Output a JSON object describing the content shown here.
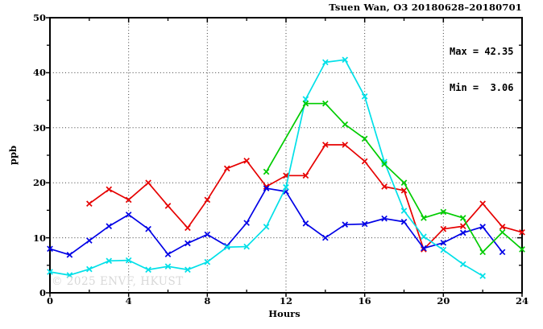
{
  "title": "Tsuen Wan, O3 20180628–20180701",
  "stats": {
    "max_label": "Max = 42.35",
    "min_label": "Min =  3.06"
  },
  "watermark": "© 2025 ENVF, HKUST",
  "chart_data": {
    "type": "line",
    "title": "Tsuen Wan, O3 20180628–20180701",
    "xlabel": "Hours",
    "ylabel": "ppb",
    "xlim": [
      0,
      24
    ],
    "ylim": [
      0,
      50
    ],
    "xticks": [
      0,
      4,
      8,
      12,
      16,
      20,
      24
    ],
    "yticks": [
      0,
      10,
      20,
      30,
      40,
      50
    ],
    "x_minor_ticks": [
      2,
      6,
      10,
      14,
      18,
      22
    ],
    "y_minor_ticks": [
      5,
      15,
      25,
      35,
      45
    ],
    "grid": "dotted lines at major ticks, boxed axes with ticks on all four sides",
    "legend": "none",
    "max": 42.35,
    "min": 3.06,
    "marker": "x-cross",
    "series": [
      {
        "name": "series-red",
        "color": "#e60000",
        "points": [
          [
            2,
            16.2
          ],
          [
            3,
            18.8
          ],
          [
            4,
            16.9
          ],
          [
            5,
            20.0
          ],
          [
            6,
            15.8
          ],
          [
            7,
            11.8
          ],
          [
            8,
            16.9
          ],
          [
            9,
            22.6
          ],
          [
            10,
            24.0
          ],
          [
            11,
            19.3
          ],
          [
            12,
            21.3
          ],
          [
            13,
            21.3
          ],
          [
            14,
            26.9
          ],
          [
            15,
            26.9
          ],
          [
            16,
            23.9
          ],
          [
            17,
            19.3
          ],
          [
            18,
            18.6
          ],
          [
            19,
            7.9
          ],
          [
            20,
            11.6
          ],
          [
            21,
            12.1
          ],
          [
            22,
            16.2
          ],
          [
            23,
            12.0
          ],
          [
            24,
            11.0
          ]
        ]
      },
      {
        "name": "series-blue",
        "color": "#0000e6",
        "points": [
          [
            0,
            8.0
          ],
          [
            1,
            6.9
          ],
          [
            2,
            9.5
          ],
          [
            3,
            12.1
          ],
          [
            4,
            14.2
          ],
          [
            5,
            11.6
          ],
          [
            6,
            7.0
          ],
          [
            7,
            9.0
          ],
          [
            8,
            10.6
          ],
          [
            9,
            8.5
          ],
          [
            10,
            12.7
          ],
          [
            11,
            19.0
          ],
          [
            12,
            18.4
          ],
          [
            13,
            12.6
          ],
          [
            14,
            10.0
          ],
          [
            15,
            12.4
          ],
          [
            16,
            12.5
          ],
          [
            17,
            13.5
          ],
          [
            18,
            12.9
          ],
          [
            19,
            8.1
          ],
          [
            20,
            9.1
          ],
          [
            21,
            10.9
          ],
          [
            22,
            12.0
          ],
          [
            23,
            7.4
          ]
        ]
      },
      {
        "name": "series-cyan",
        "color": "#00e0e8",
        "points": [
          [
            0,
            3.8
          ],
          [
            1,
            3.2
          ],
          [
            2,
            4.3
          ],
          [
            3,
            5.8
          ],
          [
            4,
            5.9
          ],
          [
            5,
            4.2
          ],
          [
            6,
            4.8
          ],
          [
            7,
            4.2
          ],
          [
            8,
            5.6
          ],
          [
            9,
            8.3
          ],
          [
            10,
            8.4
          ],
          [
            11,
            12.0
          ],
          [
            12,
            19.2
          ],
          [
            13,
            35.2
          ],
          [
            14,
            41.9
          ],
          [
            15,
            42.35
          ],
          [
            16,
            35.7
          ],
          [
            17,
            23.8
          ],
          [
            18,
            14.9
          ],
          [
            19,
            10.2
          ],
          [
            20,
            7.8
          ],
          [
            21,
            5.2
          ],
          [
            22,
            3.06
          ]
        ]
      },
      {
        "name": "series-green",
        "color": "#00cc00",
        "points": [
          [
            11,
            22.0
          ],
          [
            13,
            34.4
          ],
          [
            14,
            34.4
          ],
          [
            15,
            30.6
          ],
          [
            16,
            28.0
          ],
          [
            17,
            23.4
          ],
          [
            18,
            20.0
          ],
          [
            19,
            13.6
          ],
          [
            20,
            14.7
          ],
          [
            21,
            13.6
          ],
          [
            22,
            7.4
          ],
          [
            23,
            11.0
          ],
          [
            24,
            7.9
          ]
        ]
      }
    ]
  }
}
